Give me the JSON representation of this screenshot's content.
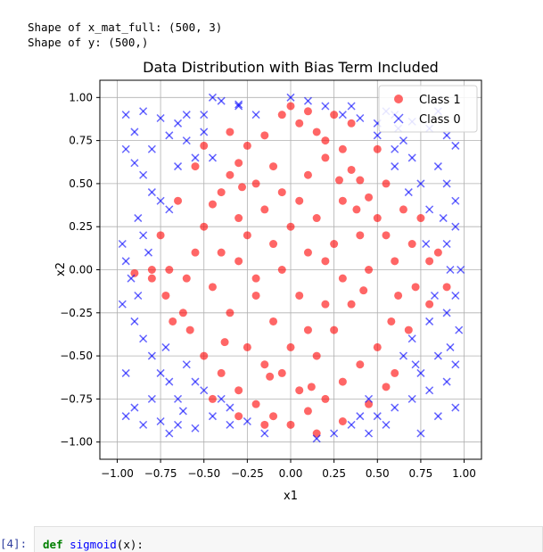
{
  "output": {
    "line1": "Shape of x_mat_full: (500, 3)",
    "line2": "Shape of y: (500,)"
  },
  "next_cell": {
    "prompt": "[4]:",
    "code_keyword": "def",
    "code_func": "sigmoid",
    "code_rest": "(x):"
  },
  "chart_data": {
    "type": "scatter",
    "title": "Data Distribution with Bias Term Included",
    "xlabel": "x1",
    "ylabel": "x2",
    "xlim": [
      -1.1,
      1.1
    ],
    "ylim": [
      -1.1,
      1.1
    ],
    "grid": true,
    "legend": "top-right",
    "xticks": [
      "−1.00",
      "−0.75",
      "−0.50",
      "−0.25",
      "0.00",
      "0.25",
      "0.50",
      "0.75",
      "1.00"
    ],
    "yticks": [
      "1.00",
      "0.75",
      "0.50",
      "0.25",
      "0.00",
      "−0.25",
      "−0.50",
      "−0.75",
      "−1.00"
    ],
    "series": [
      {
        "name": "Class 1",
        "marker": "circle",
        "color": "#ff0000",
        "points": [
          [
            0.0,
            0.95
          ],
          [
            -0.05,
            0.9
          ],
          [
            0.1,
            0.92
          ],
          [
            0.05,
            0.85
          ],
          [
            -0.15,
            0.78
          ],
          [
            0.15,
            0.8
          ],
          [
            0.2,
            0.75
          ],
          [
            -0.25,
            0.72
          ],
          [
            0.3,
            0.7
          ],
          [
            -0.3,
            0.62
          ],
          [
            0.35,
            0.58
          ],
          [
            -0.35,
            0.55
          ],
          [
            0.4,
            0.52
          ],
          [
            -0.4,
            0.45
          ],
          [
            0.45,
            0.42
          ],
          [
            -0.45,
            0.38
          ],
          [
            0.5,
            0.3
          ],
          [
            -0.5,
            0.25
          ],
          [
            0.55,
            0.2
          ],
          [
            -0.55,
            0.1
          ],
          [
            0.6,
            0.05
          ],
          [
            -0.6,
            -0.05
          ],
          [
            0.62,
            -0.15
          ],
          [
            -0.62,
            -0.25
          ],
          [
            0.58,
            -0.3
          ],
          [
            -0.58,
            -0.35
          ],
          [
            0.5,
            -0.45
          ],
          [
            -0.5,
            -0.5
          ],
          [
            0.4,
            -0.55
          ],
          [
            -0.4,
            -0.6
          ],
          [
            0.3,
            -0.65
          ],
          [
            -0.3,
            -0.7
          ],
          [
            0.2,
            -0.75
          ],
          [
            -0.2,
            -0.78
          ],
          [
            0.1,
            -0.82
          ],
          [
            -0.1,
            -0.85
          ],
          [
            0.0,
            -0.9
          ],
          [
            0.05,
            -0.7
          ],
          [
            -0.05,
            -0.6
          ],
          [
            0.0,
            -0.45
          ],
          [
            0.1,
            -0.35
          ],
          [
            -0.1,
            -0.3
          ],
          [
            0.2,
            -0.2
          ],
          [
            -0.2,
            -0.15
          ],
          [
            0.3,
            -0.05
          ],
          [
            -0.3,
            0.05
          ],
          [
            0.25,
            0.15
          ],
          [
            -0.25,
            0.2
          ],
          [
            0.15,
            0.3
          ],
          [
            -0.15,
            0.35
          ],
          [
            0.05,
            0.4
          ],
          [
            -0.05,
            0.45
          ],
          [
            0.1,
            0.55
          ],
          [
            -0.1,
            0.6
          ],
          [
            0.2,
            0.65
          ],
          [
            -0.2,
            0.5
          ],
          [
            0.3,
            0.4
          ],
          [
            -0.3,
            0.3
          ],
          [
            0.4,
            0.2
          ],
          [
            -0.4,
            0.1
          ],
          [
            0.45,
            0.0
          ],
          [
            -0.45,
            -0.1
          ],
          [
            0.35,
            -0.2
          ],
          [
            -0.35,
            -0.25
          ],
          [
            0.25,
            -0.35
          ],
          [
            -0.25,
            -0.45
          ],
          [
            0.15,
            -0.5
          ],
          [
            -0.15,
            -0.55
          ],
          [
            0.05,
            -0.15
          ],
          [
            -0.05,
            0.0
          ],
          [
            0.1,
            0.1
          ],
          [
            -0.1,
            0.15
          ],
          [
            0.0,
            0.25
          ],
          [
            0.2,
            0.05
          ],
          [
            -0.2,
            -0.05
          ],
          [
            0.55,
            0.5
          ],
          [
            -0.55,
            0.6
          ],
          [
            0.65,
            0.35
          ],
          [
            -0.65,
            0.4
          ],
          [
            0.7,
            0.15
          ],
          [
            -0.7,
            0.0
          ],
          [
            0.72,
            -0.1
          ],
          [
            -0.72,
            -0.15
          ],
          [
            0.68,
            -0.35
          ],
          [
            -0.68,
            -0.3
          ],
          [
            0.6,
            -0.6
          ],
          [
            0.8,
            0.05
          ],
          [
            -0.8,
            -0.05
          ],
          [
            0.85,
            0.1
          ],
          [
            0.9,
            -0.1
          ],
          [
            -0.9,
            -0.02
          ],
          [
            0.75,
            0.3
          ],
          [
            -0.75,
            0.2
          ],
          [
            0.8,
            -0.2
          ],
          [
            -0.8,
            0.0
          ],
          [
            0.35,
            0.85
          ],
          [
            -0.35,
            0.8
          ],
          [
            0.5,
            0.7
          ],
          [
            -0.5,
            0.72
          ],
          [
            0.25,
            0.9
          ],
          [
            0.15,
            -0.95
          ],
          [
            -0.15,
            -0.9
          ],
          [
            0.3,
            -0.88
          ],
          [
            -0.3,
            -0.85
          ],
          [
            0.45,
            -0.78
          ],
          [
            -0.45,
            -0.75
          ],
          [
            0.55,
            -0.68
          ],
          [
            0.38,
            0.35
          ],
          [
            -0.38,
            -0.42
          ],
          [
            0.42,
            -0.12
          ],
          [
            -0.12,
            -0.62
          ],
          [
            0.12,
            -0.68
          ],
          [
            0.28,
            0.52
          ],
          [
            -0.28,
            0.48
          ]
        ]
      },
      {
        "name": "Class 0",
        "marker": "x",
        "color": "#0000ff",
        "points": [
          [
            -0.95,
            0.9
          ],
          [
            -0.85,
            0.92
          ],
          [
            -0.75,
            0.88
          ],
          [
            -0.65,
            0.85
          ],
          [
            -0.45,
            1.0
          ],
          [
            -0.4,
            0.98
          ],
          [
            -0.3,
            0.96
          ],
          [
            -0.2,
            0.9
          ],
          [
            0.1,
            0.98
          ],
          [
            0.3,
            0.9
          ],
          [
            0.4,
            0.88
          ],
          [
            0.5,
            0.85
          ],
          [
            0.6,
            0.9
          ],
          [
            0.7,
            0.86
          ],
          [
            0.8,
            0.82
          ],
          [
            0.9,
            0.78
          ],
          [
            0.95,
            0.72
          ],
          [
            -0.95,
            0.7
          ],
          [
            -0.9,
            0.62
          ],
          [
            -0.85,
            0.55
          ],
          [
            -0.8,
            0.45
          ],
          [
            -0.75,
            0.4
          ],
          [
            -0.7,
            0.35
          ],
          [
            0.85,
            0.6
          ],
          [
            0.9,
            0.5
          ],
          [
            0.95,
            0.4
          ],
          [
            0.8,
            0.35
          ],
          [
            0.75,
            0.5
          ],
          [
            0.7,
            0.65
          ],
          [
            0.6,
            0.7
          ],
          [
            0.65,
            0.75
          ],
          [
            0.5,
            0.78
          ],
          [
            -0.6,
            0.75
          ],
          [
            -0.55,
            0.65
          ],
          [
            -0.65,
            0.6
          ],
          [
            -0.5,
            0.8
          ],
          [
            -0.97,
            0.15
          ],
          [
            -0.95,
            0.05
          ],
          [
            -0.92,
            -0.05
          ],
          [
            -0.97,
            -0.2
          ],
          [
            -0.9,
            -0.3
          ],
          [
            -0.85,
            -0.4
          ],
          [
            -0.8,
            -0.5
          ],
          [
            -0.75,
            -0.6
          ],
          [
            -0.7,
            -0.65
          ],
          [
            -0.8,
            -0.75
          ],
          [
            -0.9,
            -0.8
          ],
          [
            -0.95,
            -0.85
          ],
          [
            -0.85,
            -0.9
          ],
          [
            -0.75,
            -0.88
          ],
          [
            -0.65,
            -0.9
          ],
          [
            -0.55,
            -0.92
          ],
          [
            -0.45,
            -0.85
          ],
          [
            -0.35,
            -0.9
          ],
          [
            -0.25,
            -0.88
          ],
          [
            -0.15,
            -0.95
          ],
          [
            0.15,
            -0.98
          ],
          [
            0.25,
            -0.95
          ],
          [
            0.35,
            -0.9
          ],
          [
            0.45,
            -0.95
          ],
          [
            0.5,
            -0.85
          ],
          [
            0.6,
            -0.8
          ],
          [
            0.7,
            -0.75
          ],
          [
            0.8,
            -0.7
          ],
          [
            0.9,
            -0.65
          ],
          [
            0.95,
            -0.55
          ],
          [
            0.92,
            -0.45
          ],
          [
            0.97,
            -0.35
          ],
          [
            0.9,
            -0.25
          ],
          [
            0.95,
            -0.15
          ],
          [
            0.98,
            0.0
          ],
          [
            0.9,
            0.15
          ],
          [
            0.95,
            0.25
          ],
          [
            0.85,
            -0.5
          ],
          [
            0.75,
            -0.6
          ],
          [
            0.65,
            -0.5
          ],
          [
            0.7,
            -0.4
          ],
          [
            0.8,
            -0.3
          ],
          [
            -0.6,
            -0.55
          ],
          [
            -0.55,
            -0.65
          ],
          [
            -0.5,
            -0.7
          ],
          [
            -0.4,
            -0.75
          ],
          [
            -0.35,
            -0.8
          ],
          [
            -0.65,
            -0.75
          ],
          [
            0.55,
            -0.9
          ],
          [
            0.4,
            -0.85
          ],
          [
            -0.9,
            0.8
          ],
          [
            -0.8,
            0.7
          ],
          [
            -0.7,
            0.78
          ],
          [
            -0.6,
            0.9
          ],
          [
            0.2,
            0.95
          ],
          [
            0.55,
            0.92
          ],
          [
            0.85,
            0.92
          ],
          [
            -0.88,
            0.3
          ],
          [
            -0.85,
            0.2
          ],
          [
            0.88,
            0.3
          ],
          [
            0.92,
            0.0
          ],
          [
            -0.95,
            -0.6
          ],
          [
            0.95,
            -0.8
          ],
          [
            0.85,
            -0.85
          ],
          [
            0.75,
            -0.95
          ],
          [
            -0.7,
            -0.95
          ],
          [
            0.6,
            0.6
          ],
          [
            -0.45,
            0.65
          ],
          [
            0.68,
            0.45
          ],
          [
            -0.72,
            -0.45
          ],
          [
            0.72,
            -0.55
          ],
          [
            0.45,
            -0.75
          ],
          [
            -0.3,
            0.95
          ],
          [
            0.0,
            1.0
          ],
          [
            0.78,
            0.15
          ],
          [
            -0.82,
            0.1
          ],
          [
            -0.88,
            -0.15
          ],
          [
            0.83,
            -0.15
          ],
          [
            0.62,
            0.82
          ],
          [
            -0.62,
            -0.82
          ],
          [
            0.35,
            0.95
          ],
          [
            -0.5,
            0.9
          ]
        ]
      }
    ]
  }
}
